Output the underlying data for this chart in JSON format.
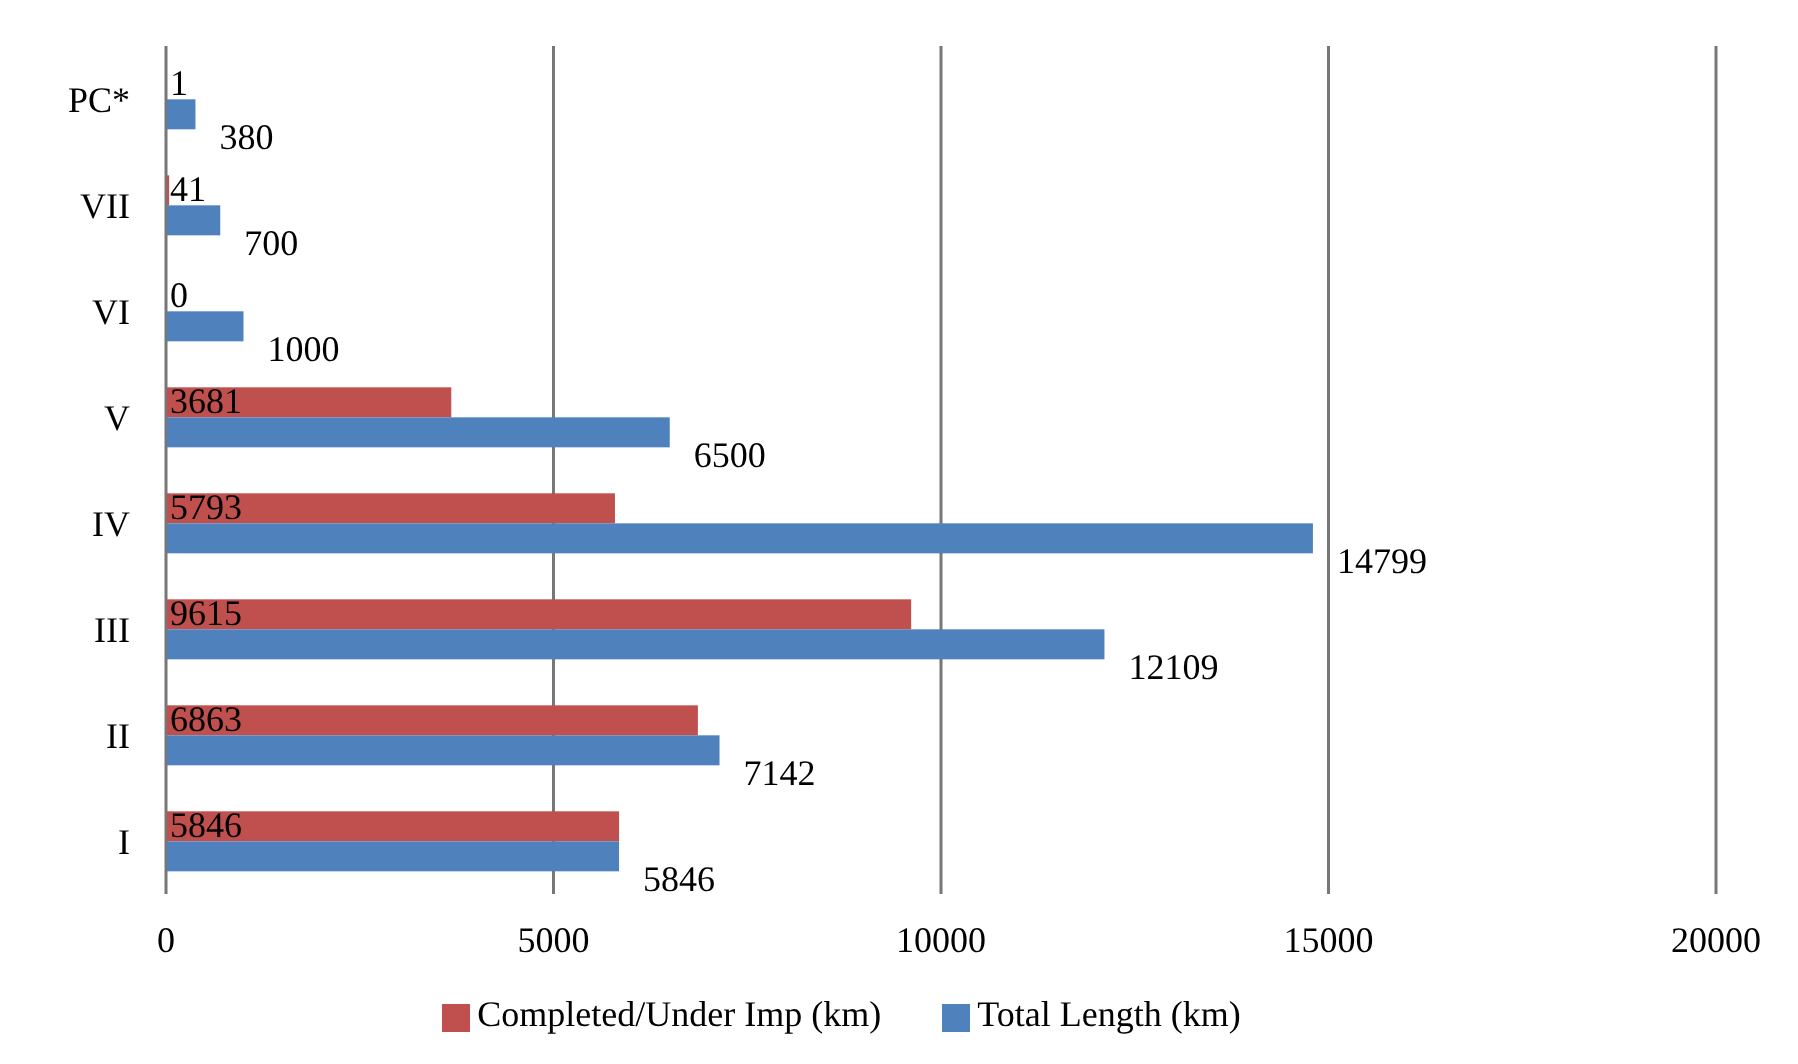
{
  "chart_data": {
    "type": "bar",
    "orientation": "horizontal",
    "categories": [
      "PC*",
      "VII",
      "VI",
      "V",
      "IV",
      "III",
      "II",
      "I"
    ],
    "series": [
      {
        "name": "Completed/Under Imp (km)",
        "color": "#c0504d",
        "values": [
          1,
          41,
          0,
          3681,
          5793,
          9615,
          6863,
          5846
        ]
      },
      {
        "name": "Total Length (km)",
        "color": "#4f81bd",
        "values": [
          380,
          700,
          1000,
          6500,
          14799,
          12109,
          7142,
          5846
        ]
      }
    ],
    "xlim": [
      0,
      20000
    ],
    "xticks": [
      0,
      5000,
      10000,
      15000,
      20000
    ],
    "grid": "x",
    "legend": "bottom",
    "data_labels": true
  }
}
